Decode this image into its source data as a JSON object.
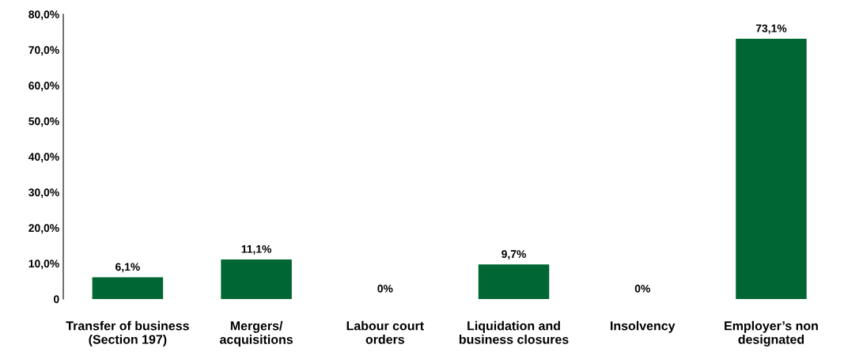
{
  "chart_data": {
    "type": "bar",
    "categories": [
      "Transfer of business\n(Section 197)",
      "Mergers/\nacquisitions",
      "Labour court\norders",
      "Liquidation and\nbusiness closures",
      "Insolvency",
      "Employer’s non\ndesignated"
    ],
    "values": [
      6.1,
      11.1,
      0,
      9.7,
      0,
      73.1
    ],
    "value_labels": [
      "6,1%",
      "11,1%",
      "0%",
      "9,7%",
      "0%",
      "73,1%"
    ],
    "color": "#006633",
    "ylim": [
      0,
      80
    ],
    "yticks": [
      {
        "value": 0,
        "label": "0"
      },
      {
        "value": 10,
        "label": "10,0%"
      },
      {
        "value": 20,
        "label": "20,0%"
      },
      {
        "value": 30,
        "label": "30,0%"
      },
      {
        "value": 40,
        "label": "40,0%"
      },
      {
        "value": 50,
        "label": "50,0%"
      },
      {
        "value": 60,
        "label": "60,0%"
      },
      {
        "value": 70,
        "label": "70,0%"
      },
      {
        "value": 80,
        "label": "80,0%"
      }
    ],
    "grid": false,
    "legend": false
  }
}
